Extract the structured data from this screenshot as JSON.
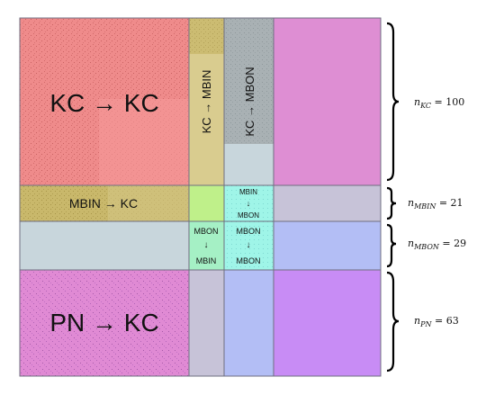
{
  "blocks": {
    "kc_kc": "KC → KC",
    "kc_mbin": "KC → MBIN",
    "kc_mbon": "KC → MBON",
    "mbin_kc": "MBIN → KC",
    "mbin_mbon_top": "MBIN",
    "mbin_mbon_arrow": "↓",
    "mbin_mbon_bottom": "MBON",
    "mbon_mbin_top": "MBON",
    "mbon_mbin_arrow": "↓",
    "mbon_mbin_bottom": "MBIN",
    "mbon_mbon_top": "MBON",
    "mbon_mbon_arrow": "↓",
    "mbon_mbon_bottom": "MBON",
    "pn_kc": "PN → KC"
  },
  "sizes": [
    {
      "base": "n",
      "sub": "KC",
      "rest": " = 100"
    },
    {
      "base": "n",
      "sub": "MBIN",
      "rest": " = 21"
    },
    {
      "base": "n",
      "sub": "MBON",
      "rest": " = 29"
    },
    {
      "base": "n",
      "sub": "PN",
      "rest": " = 63"
    }
  ],
  "colors": {
    "kc_kc": "#f08a8a",
    "mbin_col": "#d9cc8f",
    "mbon_col": "#c8d6dc",
    "pn_col": "#e08ad4",
    "mbin_mbin": "#bff08a",
    "mbin_mbon_cells": "#9ff5e8",
    "mbon_row_right": "#b3bef5",
    "pn_right": "#c88cf5"
  }
}
